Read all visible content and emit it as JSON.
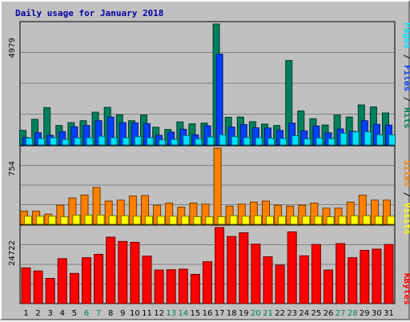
{
  "chart_data": {
    "type": "bar",
    "title": "Daily usage for January 2018",
    "categories": [
      "1",
      "2",
      "3",
      "4",
      "5",
      "6",
      "7",
      "8",
      "9",
      "10",
      "11",
      "12",
      "13",
      "14",
      "15",
      "16",
      "17",
      "18",
      "19",
      "20",
      "21",
      "22",
      "23",
      "24",
      "25",
      "26",
      "27",
      "28",
      "29",
      "30",
      "31"
    ],
    "weekend_days": [
      "6",
      "7",
      "13",
      "14",
      "20",
      "21",
      "27",
      "28"
    ],
    "panels": [
      {
        "name": "requests",
        "ylim": [
          0,
          4979
        ],
        "tick_label": "4979",
        "side_labels": [
          "Pages",
          "/",
          "Files",
          "/",
          "Hits"
        ],
        "series": [
          {
            "name": "Hits",
            "color": "#00805c",
            "values": [
              600,
              1060,
              1540,
              800,
              920,
              1000,
              1350,
              1550,
              1240,
              1000,
              1230,
              730,
              640,
              950,
              870,
              900,
              4979,
              1140,
              1150,
              960,
              860,
              800,
              3480,
              1400,
              1080,
              820,
              1230,
              1150,
              1650,
              1570,
              1320
            ]
          },
          {
            "name": "Files",
            "color": "#0040ff",
            "values": [
              300,
              500,
              400,
              550,
              750,
              800,
              1000,
              1150,
              920,
              910,
              880,
              400,
              530,
              650,
              420,
              790,
              3740,
              740,
              840,
              710,
              700,
              600,
              900,
              580,
              780,
              500,
              660,
              560,
              1000,
              850,
              820
            ]
          },
          {
            "name": "Pages",
            "color": "#00e0ff",
            "values": [
              280,
              270,
              300,
              230,
              290,
              300,
              360,
              300,
              300,
              340,
              300,
              210,
              230,
              390,
              250,
              330,
              420,
              350,
              300,
              300,
              280,
              270,
              380,
              250,
              290,
              260,
              480,
              540,
              540,
              420,
              420
            ]
          }
        ]
      },
      {
        "name": "visitors",
        "ylim": [
          0,
          754
        ],
        "tick_label": "754",
        "side_labels": [
          "Sites",
          "/",
          "Visits"
        ],
        "series": [
          {
            "name": "Visits",
            "color": "#ff8000",
            "values": [
              130,
              130,
              100,
              190,
              260,
              290,
              365,
              230,
              240,
              280,
              285,
              190,
              210,
              170,
              210,
              200,
              754,
              180,
              200,
              220,
              230,
              190,
              180,
              190,
              210,
              160,
              160,
              220,
              290,
              240,
              240
            ]
          },
          {
            "name": "Sites",
            "color": "#ffff00",
            "values": [
              80,
              80,
              80,
              75,
              90,
              90,
              90,
              85,
              85,
              80,
              80,
              80,
              80,
              80,
              75,
              75,
              75,
              85,
              80,
              85,
              80,
              80,
              80,
              80,
              80,
              75,
              80,
              85,
              85,
              80,
              80
            ]
          }
        ]
      },
      {
        "name": "kbytes",
        "ylim": [
          0,
          24722
        ],
        "tick_label": "24722",
        "side_labels": [
          "KBytes"
        ],
        "series": [
          {
            "name": "KBytes",
            "color": "#ff0000",
            "values": [
              11600,
              10600,
              8200,
              14600,
              9800,
              14900,
              16000,
              21600,
              20200,
              19900,
              15400,
              10900,
              11000,
              11200,
              9500,
              13600,
              24722,
              21800,
              23000,
              19300,
              15200,
              12500,
              23300,
              15500,
              19200,
              10900,
              19500,
              14900,
              17300,
              17700,
              19200
            ]
          }
        ]
      }
    ]
  }
}
